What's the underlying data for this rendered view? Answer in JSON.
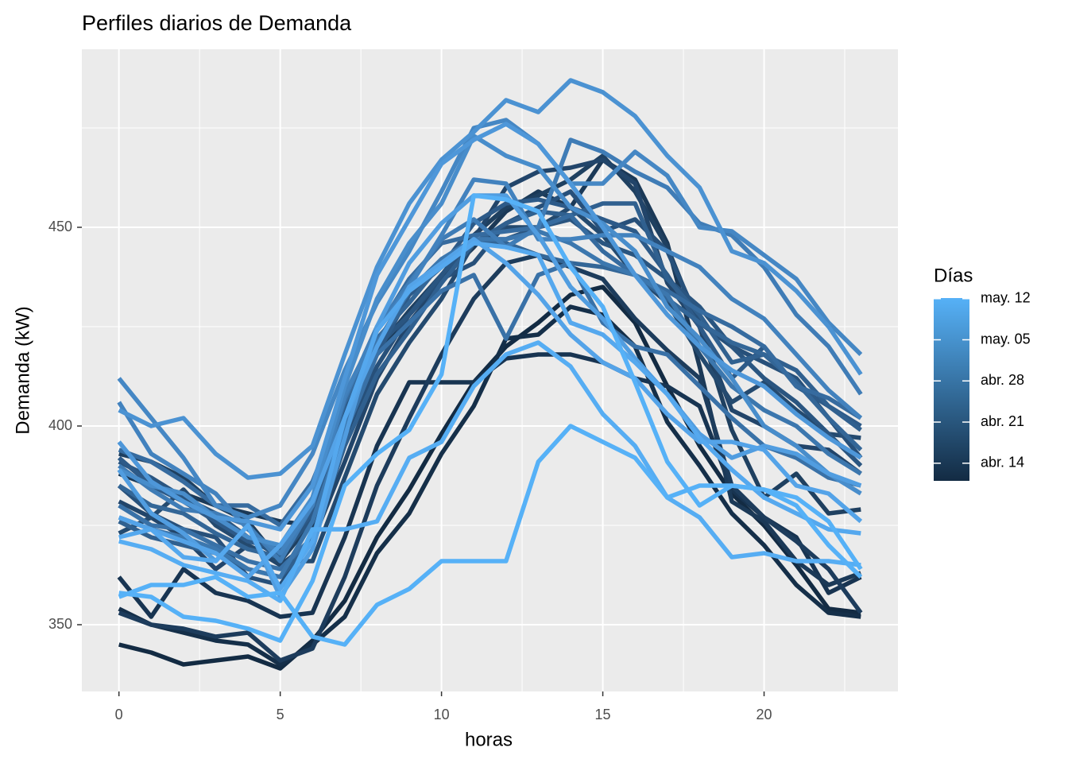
{
  "chart_data": {
    "type": "line",
    "title": "Perfiles diarios de Demanda",
    "x_label": "horas",
    "y_label": "Demanda (kW)",
    "x": [
      0,
      1,
      2,
      3,
      4,
      5,
      6,
      7,
      8,
      9,
      10,
      11,
      12,
      13,
      14,
      15,
      16,
      17,
      18,
      19,
      20,
      21,
      22,
      23
    ],
    "xlim": [
      -1.15,
      24.15
    ],
    "xticks": [
      0,
      5,
      10,
      15,
      20
    ],
    "xminor": [
      2.5,
      7.5,
      12.5,
      17.5,
      22.5
    ],
    "ylim": [
      333.2,
      494.8
    ],
    "yticks": [
      350,
      400,
      450
    ],
    "yminor": [
      375,
      425,
      475
    ],
    "grid": true,
    "colorbar": {
      "title": "Días",
      "colors": [
        "#132B43",
        "#56B1F7"
      ],
      "lim": [
        11,
        42.1
      ],
      "ticks": [
        {
          "value": 14,
          "label": "abr. 14"
        },
        {
          "value": 21,
          "label": "abr. 21"
        },
        {
          "value": 28,
          "label": "abr. 28"
        },
        {
          "value": 35,
          "label": "may. 05"
        },
        {
          "value": 42,
          "label": "may. 12"
        }
      ]
    },
    "series": [
      {
        "color": "#132B43",
        "values": [
          345,
          343,
          340,
          341,
          342,
          339,
          346,
          356,
          372,
          384,
          398,
          411,
          420,
          426,
          433,
          435,
          426,
          410,
          395,
          383,
          375,
          365,
          354,
          353
        ]
      },
      {
        "color": "#152F49",
        "values": [
          354,
          350,
          348,
          346,
          345,
          340,
          345,
          352,
          368,
          378,
          393,
          405,
          422,
          423,
          430,
          428,
          420,
          401,
          390,
          378,
          370,
          360,
          353,
          352
        ]
      },
      {
        "color": "#183451",
        "values": [
          362,
          352,
          364,
          358,
          356,
          352,
          353,
          372,
          395,
          411,
          411,
          411,
          417,
          418,
          418,
          416,
          412,
          410,
          405,
          384,
          377,
          372,
          358,
          362
        ]
      },
      {
        "color": "#1B3957",
        "values": [
          388,
          385,
          383,
          380,
          378,
          376,
          375,
          396,
          419,
          428,
          437,
          445,
          454,
          459,
          455,
          467,
          462,
          446,
          415,
          381,
          376,
          366,
          360,
          363
        ]
      },
      {
        "color": "#1D3C5C",
        "values": [
          353,
          350,
          349,
          347,
          348,
          341,
          344,
          362,
          385,
          402,
          418,
          432,
          441,
          443,
          440,
          437,
          427,
          419,
          412,
          385,
          377,
          371,
          364,
          353
        ]
      },
      {
        "color": "#1F4060",
        "values": [
          393,
          391,
          387,
          380,
          376,
          366,
          376,
          405,
          419,
          429,
          438,
          448,
          455,
          458,
          462,
          468,
          459,
          445,
          425,
          399,
          382,
          388,
          378,
          379
        ]
      },
      {
        "color": "#22456A",
        "values": [
          381,
          377,
          372,
          364,
          370,
          365,
          371,
          391,
          412,
          426,
          436,
          447,
          460,
          464,
          465,
          467,
          461,
          436,
          425,
          404,
          400,
          395,
          394,
          388
        ]
      },
      {
        "color": "#244A6F",
        "values": [
          373,
          377,
          384,
          375,
          370,
          366,
          366,
          387,
          408,
          421,
          432,
          446,
          450,
          450,
          455,
          448,
          438,
          431,
          418,
          406,
          411,
          404,
          398,
          397
        ]
      },
      {
        "color": "#27507A",
        "values": [
          385,
          378,
          374,
          372,
          362,
          360,
          372,
          398,
          415,
          428,
          437,
          441,
          451,
          455,
          459,
          449,
          452,
          444,
          426,
          420,
          416,
          412,
          402,
          392
        ]
      },
      {
        "color": "#2A5580",
        "values": [
          391,
          387,
          382,
          378,
          372,
          367,
          377,
          404,
          420,
          428,
          438,
          447,
          447,
          450,
          452,
          446,
          443,
          437,
          430,
          420,
          412,
          406,
          398,
          390
        ]
      },
      {
        "color": "#2D5A88",
        "values": [
          392,
          385,
          381,
          376,
          371,
          369,
          378,
          401,
          418,
          433,
          440,
          451,
          456,
          457,
          455,
          452,
          449,
          438,
          425,
          412,
          420,
          410,
          405,
          400
        ]
      },
      {
        "color": "#30608F",
        "values": [
          376,
          372,
          370,
          368,
          364,
          362,
          371,
          395,
          413,
          424,
          436,
          446,
          451,
          454,
          453,
          456,
          456,
          437,
          428,
          416,
          418,
          414,
          405,
          399
        ]
      },
      {
        "color": "#336697",
        "values": [
          385,
          380,
          378,
          373,
          369,
          367,
          380,
          406,
          422,
          431,
          441,
          447,
          446,
          443,
          441,
          440,
          438,
          432,
          426,
          421,
          418,
          411,
          402,
          394
        ]
      },
      {
        "color": "#366B9F",
        "values": [
          394,
          391,
          386,
          380,
          380,
          375,
          386,
          406,
          424,
          437,
          446,
          448,
          449,
          450,
          453,
          444,
          438,
          434,
          429,
          425,
          420,
          410,
          407,
          402
        ]
      },
      {
        "color": "#3971A7",
        "values": [
          380,
          375,
          374,
          370,
          366,
          364,
          372,
          398,
          418,
          426,
          434,
          438,
          422,
          438,
          441,
          426,
          420,
          418,
          410,
          402,
          395,
          392,
          387,
          385
        ]
      },
      {
        "color": "#3C77AE",
        "values": [
          377,
          374,
          372,
          369,
          364,
          362,
          376,
          400,
          421,
          434,
          442,
          447,
          447,
          449,
          446,
          441,
          438,
          433,
          420,
          410,
          404,
          400,
          393,
          388
        ]
      },
      {
        "color": "#3F7CB6",
        "values": [
          390,
          384,
          379,
          378,
          375,
          366,
          380,
          407,
          425,
          436,
          447,
          452,
          445,
          450,
          472,
          469,
          464,
          460,
          451,
          448,
          440,
          428,
          420,
          408
        ]
      },
      {
        "color": "#4282BE",
        "values": [
          406,
          393,
          388,
          383,
          374,
          368,
          380,
          408,
          424,
          435,
          448,
          462,
          461,
          447,
          447,
          448,
          448,
          444,
          440,
          432,
          427,
          418,
          409,
          402
        ]
      },
      {
        "color": "#4587C4",
        "values": [
          412,
          402,
          392,
          380,
          377,
          380,
          393,
          414,
          431,
          444,
          459,
          475,
          477,
          471,
          461,
          461,
          469,
          463,
          450,
          449,
          443,
          437,
          426,
          418
        ]
      },
      {
        "color": "#488DCB",
        "values": [
          389,
          385,
          383,
          377,
          372,
          370,
          382,
          410,
          432,
          446,
          456,
          473,
          468,
          465,
          455,
          451,
          444,
          430,
          422,
          412,
          400,
          395,
          388,
          383
        ]
      },
      {
        "color": "#4B92D2",
        "values": [
          404,
          400,
          402,
          393,
          387,
          388,
          395,
          418,
          440,
          456,
          467,
          474,
          482,
          479,
          487,
          484,
          478,
          468,
          460,
          444,
          441,
          434,
          425,
          413
        ]
      },
      {
        "color": "#4E97D9",
        "values": [
          396,
          386,
          381,
          377,
          376,
          374,
          385,
          412,
          438,
          452,
          466,
          472,
          476,
          471,
          461,
          450,
          438,
          428,
          420,
          414,
          410,
          403,
          397,
          392
        ]
      },
      {
        "color": "#519DE0",
        "values": [
          389,
          378,
          373,
          366,
          375,
          357,
          369,
          397,
          425,
          441,
          451,
          458,
          458,
          448,
          435,
          427,
          417,
          408,
          398,
          392,
          395,
          393,
          388,
          385
        ]
      },
      {
        "color": "#54A3E8",
        "values": [
          377,
          374,
          371,
          368,
          362,
          370,
          381,
          402,
          420,
          435,
          441,
          447,
          441,
          433,
          423,
          416,
          412,
          403,
          396,
          396,
          394,
          385,
          383,
          376
        ]
      },
      {
        "color": "#55A8EE",
        "values": [
          372,
          374,
          367,
          366,
          375,
          359,
          371,
          402,
          424,
          434,
          440,
          446,
          445,
          443,
          426,
          423,
          416,
          408,
          397,
          389,
          382,
          378,
          374,
          373
        ]
      },
      {
        "color": "#56ADF3",
        "values": [
          371,
          369,
          365,
          363,
          361,
          356,
          374,
          374,
          376,
          392,
          396,
          410,
          418,
          421,
          415,
          403,
          395,
          382,
          377,
          367,
          368,
          366,
          366,
          365
        ]
      },
      {
        "color": "#56B1F7",
        "values": [
          357,
          360,
          360,
          362,
          357,
          358,
          347,
          345,
          355,
          359,
          366,
          366,
          366,
          391,
          400,
          396,
          392,
          382,
          385,
          385,
          384,
          382,
          376,
          364
        ]
      },
      {
        "color": "#56B1F7",
        "values": [
          358,
          357,
          352,
          351,
          349,
          346,
          361,
          385,
          393,
          399,
          413,
          458,
          457,
          454,
          440,
          430,
          411,
          391,
          380,
          385,
          384,
          380,
          370,
          362
        ]
      }
    ]
  }
}
